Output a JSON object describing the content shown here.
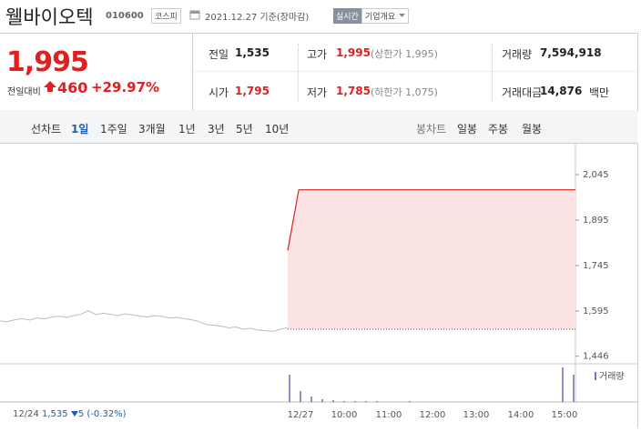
{
  "header": {
    "name": "웰바이오텍",
    "code": "010600",
    "market": "코스피",
    "date": "2021.12.27 기준(장마감)",
    "realtime": "실시간",
    "company_info": "기업개요"
  },
  "price": {
    "current": "1,995",
    "change_label": "전일대비",
    "change": "460",
    "change_rate": "+29.97%"
  },
  "stats": [
    [
      {
        "label": "전일",
        "value": "1,535"
      },
      {
        "label": "고가",
        "value": "1,995",
        "note": "(상한가 1,995)"
      },
      {
        "label": "거래량",
        "value": "7,594,918"
      }
    ],
    [
      {
        "label": "시가",
        "value": "1,795"
      },
      {
        "label": "저가",
        "value": "1,785",
        "note": "(하한가 1,075)"
      },
      {
        "label": "거래대금",
        "value": "14,876",
        "unit": "백만"
      }
    ]
  ],
  "tabs": {
    "line_label": "선차트",
    "line": [
      "1일",
      "1주일",
      "3개월",
      "1년",
      "3년",
      "5년",
      "10년"
    ],
    "candle_label": "봉차트",
    "candle": [
      "일봉",
      "주봉",
      "월봉"
    ]
  },
  "chart_data": {
    "type": "line",
    "ylim": [
      1436,
      2141
    ],
    "yticks": [
      {
        "value": 2045,
        "label": "2,045"
      },
      {
        "value": 1895,
        "label": "1,895"
      },
      {
        "value": 1745,
        "label": "1,745"
      },
      {
        "value": 1595,
        "label": "1,595"
      },
      {
        "value": 1446,
        "label": "1,446"
      }
    ],
    "prev_close": 1535,
    "prev_values": [
      1562,
      1560,
      1566,
      1570,
      1565,
      1572,
      1569,
      1575,
      1578,
      1574,
      1580,
      1585,
      1596,
      1583,
      1588,
      1584,
      1580,
      1586,
      1582,
      1578,
      1575,
      1580,
      1577,
      1572,
      1574,
      1570,
      1566,
      1560,
      1550,
      1548,
      1545,
      1540,
      1542,
      1535,
      1538,
      1532,
      1530,
      1528,
      1535,
      1540
    ],
    "today_values": [
      1795,
      1995,
      1995,
      1995,
      1995,
      1995,
      1995,
      1995,
      1995,
      1995,
      1995,
      1995,
      1995,
      1995,
      1995,
      1995,
      1995,
      1995,
      1995,
      1995,
      1995,
      1995,
      1995,
      1995,
      1995,
      1995,
      1995
    ],
    "color": "#e02020",
    "fill": "#fde4e4",
    "prev_color": "#bbbbbb",
    "volume_label": "거래량",
    "volume_color": "#7b6fb0",
    "volume_values": [
      30,
      12,
      6,
      3,
      2,
      1,
      1,
      1,
      1,
      0,
      0,
      1,
      0,
      0,
      0,
      0,
      0,
      0,
      0,
      0,
      0,
      0,
      0,
      0,
      0,
      38,
      30
    ],
    "x_labels": [
      "12/24",
      "12/27",
      "10:00",
      "11:00",
      "12:00",
      "13:00",
      "14:00",
      "15:00"
    ]
  },
  "footer": {
    "date": "12/24",
    "price": "1,535",
    "change": "5",
    "change_rate": "(-0.32%)"
  }
}
